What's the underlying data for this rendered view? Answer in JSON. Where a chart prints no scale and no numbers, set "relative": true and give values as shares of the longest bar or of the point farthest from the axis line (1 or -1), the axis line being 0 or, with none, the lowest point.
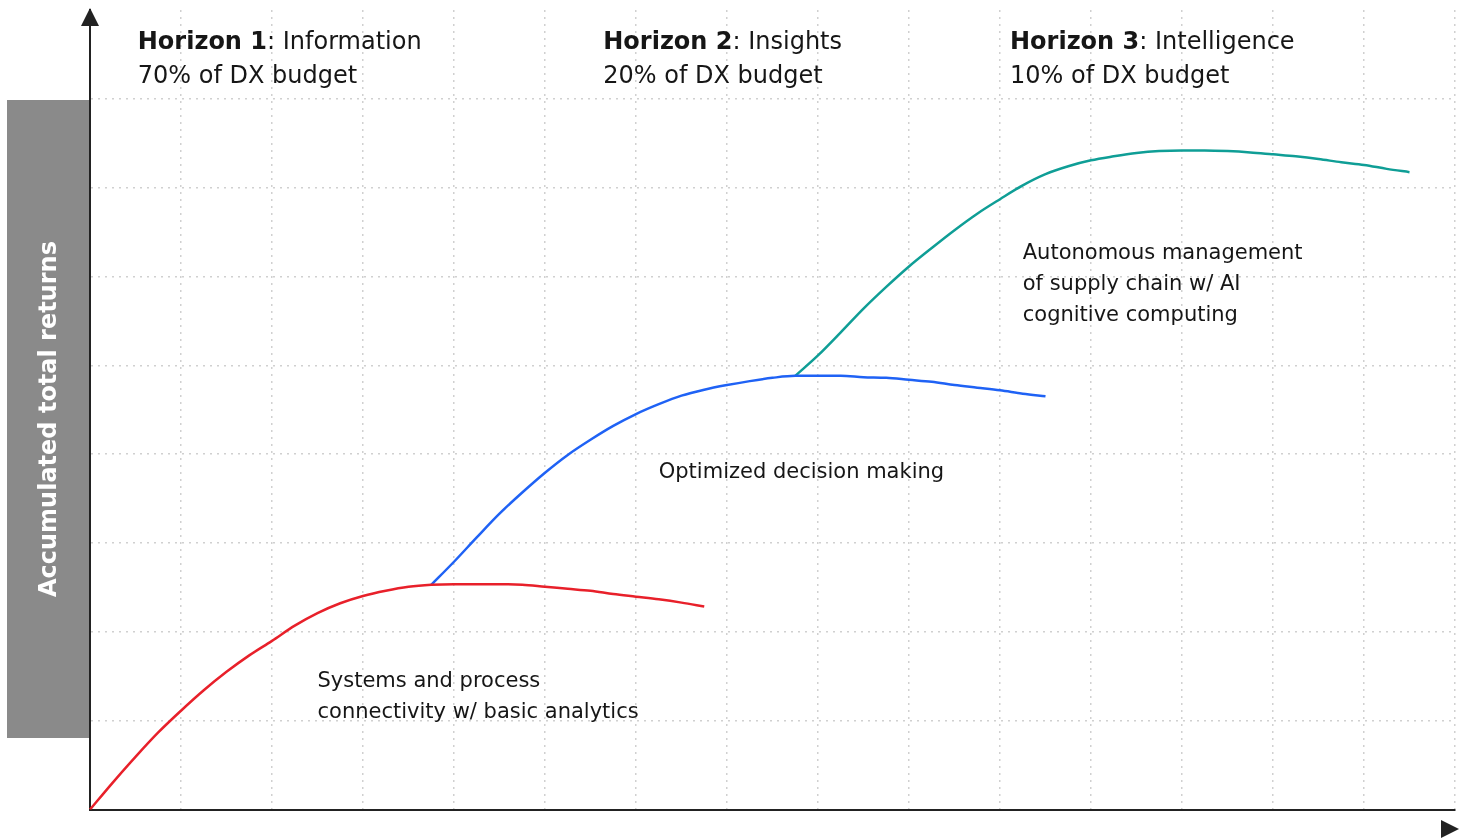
{
  "chart_data": {
    "type": "line",
    "relative": true,
    "ylabel": "Accumulated total returns",
    "grid": true,
    "marker": "none",
    "line_style": "solid",
    "annotations": [
      "Horizon 1: Information\n70% of DX budget",
      "Horizon 2: Insights\n20% of DX budget",
      "Horizon 3: Intelligence\n10% of DX budget"
    ],
    "categories": [
      null,
      null,
      null,
      null,
      null,
      null,
      null,
      null,
      null,
      null,
      null,
      null,
      null,
      null,
      null,
      null,
      null,
      null,
      null,
      null,
      null,
      null,
      null,
      null,
      null,
      null,
      null,
      null,
      null,
      null,
      null,
      null,
      null,
      null,
      null,
      null,
      null,
      null,
      null,
      null,
      null,
      null,
      null,
      null,
      null,
      null,
      null,
      null,
      null,
      null,
      null,
      null,
      null,
      null,
      null,
      null,
      null,
      null,
      null,
      null,
      null
    ],
    "series": [
      {
        "name": "Systems and process\nconnectivity w/ basic analytics",
        "color": "#e8202a",
        "values": [
          0,
          0.041,
          0.08,
          0.117,
          0.15,
          0.181,
          0.209,
          0.234,
          0.256,
          0.279,
          0.298,
          0.313,
          0.324,
          0.332,
          0.338,
          0.341,
          0.342,
          0.342,
          0.342,
          0.341,
          0.338,
          0.335,
          0.332,
          0.327,
          0.323,
          0.319,
          0.314,
          0.308,
          null,
          null,
          null,
          null,
          null,
          null,
          null,
          null,
          null,
          null,
          null,
          null,
          null,
          null,
          null,
          null,
          null,
          null,
          null,
          null,
          null,
          null,
          null,
          null,
          null,
          null,
          null,
          null,
          null,
          null,
          null,
          null,
          null
        ]
      },
      {
        "name": "Optimized decision making",
        "color": "#1f62f5",
        "values": [
          null,
          null,
          null,
          null,
          null,
          null,
          null,
          null,
          null,
          null,
          null,
          null,
          null,
          null,
          null,
          0.341,
          0.376,
          0.413,
          0.449,
          0.481,
          0.511,
          0.538,
          0.561,
          0.582,
          0.6,
          0.615,
          0.628,
          0.637,
          0.644,
          0.65,
          0.655,
          0.658,
          0.658,
          0.658,
          0.656,
          0.655,
          0.652,
          0.649,
          0.644,
          0.64,
          0.636,
          0.631,
          0.627,
          null,
          null,
          null,
          null,
          null,
          null,
          null,
          null,
          null,
          null,
          null,
          null,
          null,
          null,
          null,
          null,
          null,
          null
        ]
      },
      {
        "name": "Autonomous management\nof supply chain w/ AI\ncognitive computing",
        "color": "#0f9e96",
        "values": [
          null,
          null,
          null,
          null,
          null,
          null,
          null,
          null,
          null,
          null,
          null,
          null,
          null,
          null,
          null,
          null,
          null,
          null,
          null,
          null,
          null,
          null,
          null,
          null,
          null,
          null,
          null,
          null,
          null,
          null,
          null,
          0.658,
          0.689,
          0.724,
          0.76,
          0.793,
          0.824,
          0.852,
          0.879,
          0.904,
          0.926,
          0.947,
          0.964,
          0.976,
          0.985,
          0.991,
          0.996,
          0.999,
          1,
          1,
          0.999,
          0.997,
          0.994,
          0.991,
          0.987,
          0.982,
          0.978,
          0.972,
          0.967,
          null,
          null
        ]
      }
    ]
  }
}
